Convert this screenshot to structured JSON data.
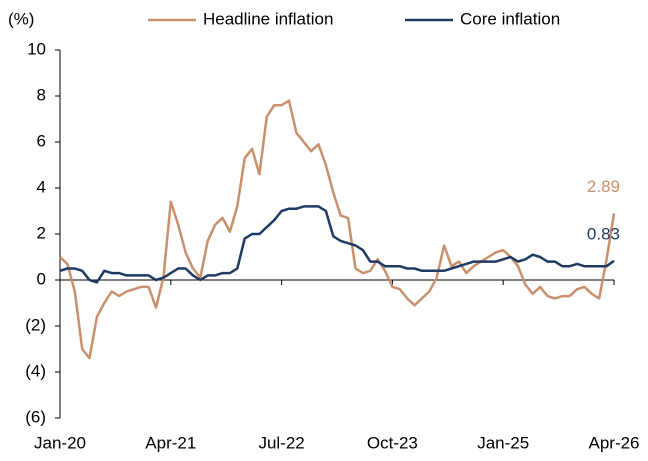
{
  "chart_data": {
    "type": "line",
    "y_label": "(%)",
    "categories": [
      "Jan-20",
      null,
      null,
      null,
      null,
      null,
      null,
      null,
      null,
      null,
      null,
      null,
      null,
      null,
      null,
      "Apr-21",
      null,
      null,
      null,
      null,
      null,
      null,
      null,
      null,
      null,
      null,
      null,
      null,
      null,
      null,
      "Jul-22",
      null,
      null,
      null,
      null,
      null,
      null,
      null,
      null,
      null,
      null,
      null,
      null,
      null,
      null,
      "Oct-23",
      null,
      null,
      null,
      null,
      null,
      null,
      null,
      null,
      null,
      null,
      null,
      null,
      null,
      null,
      "Jan-25",
      null,
      null,
      null,
      null,
      null,
      null,
      null,
      null,
      null,
      null,
      null,
      null,
      null,
      null,
      "Apr-26"
    ],
    "series": [
      {
        "name": "Headline inflation",
        "color": "#c8906c",
        "values": [
          1.0,
          0.7,
          -0.5,
          -3.0,
          -3.4,
          -1.6,
          -1.0,
          -0.5,
          -0.7,
          -0.5,
          -0.4,
          -0.3,
          -0.3,
          -1.2,
          0.1,
          3.4,
          2.4,
          1.2,
          0.5,
          0.1,
          1.7,
          2.4,
          2.7,
          2.1,
          3.2,
          5.3,
          5.7,
          4.6,
          7.1,
          7.6,
          7.6,
          7.8,
          6.4,
          6.0,
          5.6,
          5.9,
          5.0,
          3.8,
          2.8,
          2.7,
          0.5,
          0.3,
          0.4,
          0.9,
          0.4,
          -0.3,
          -0.4,
          -0.8,
          -1.1,
          -0.8,
          -0.5,
          0.1,
          1.5,
          0.6,
          0.8,
          0.3,
          0.6,
          0.8,
          1.0,
          1.2,
          1.3,
          1.0,
          0.6,
          -0.2,
          -0.6,
          -0.3,
          -0.7,
          -0.8,
          -0.7,
          -0.7,
          -0.4,
          -0.3,
          -0.6,
          -0.8,
          0.9,
          2.89
        ]
      },
      {
        "name": "Core inflation",
        "color": "#1f3b63",
        "values": [
          0.4,
          0.5,
          0.5,
          0.4,
          0.0,
          -0.1,
          0.4,
          0.3,
          0.3,
          0.2,
          0.2,
          0.2,
          0.2,
          0.0,
          0.1,
          0.3,
          0.5,
          0.5,
          0.2,
          0.0,
          0.2,
          0.2,
          0.3,
          0.3,
          0.5,
          1.8,
          2.0,
          2.0,
          2.3,
          2.6,
          3.0,
          3.1,
          3.1,
          3.2,
          3.2,
          3.2,
          3.0,
          1.9,
          1.7,
          1.6,
          1.5,
          1.3,
          0.8,
          0.8,
          0.6,
          0.6,
          0.6,
          0.5,
          0.5,
          0.4,
          0.4,
          0.4,
          0.4,
          0.5,
          0.6,
          0.7,
          0.8,
          0.8,
          0.8,
          0.8,
          0.9,
          1.0,
          0.8,
          0.9,
          1.1,
          1.0,
          0.8,
          0.8,
          0.6,
          0.6,
          0.7,
          0.6,
          0.6,
          0.6,
          0.6,
          0.83
        ]
      }
    ],
    "ylim": [
      -6,
      10
    ],
    "yticks": [
      {
        "value": -6,
        "label": "(6)"
      },
      {
        "value": -4,
        "label": "(4)"
      },
      {
        "value": -2,
        "label": "(2)"
      },
      0,
      2,
      4,
      6,
      8,
      10
    ],
    "legend": "top",
    "grid": false
  }
}
